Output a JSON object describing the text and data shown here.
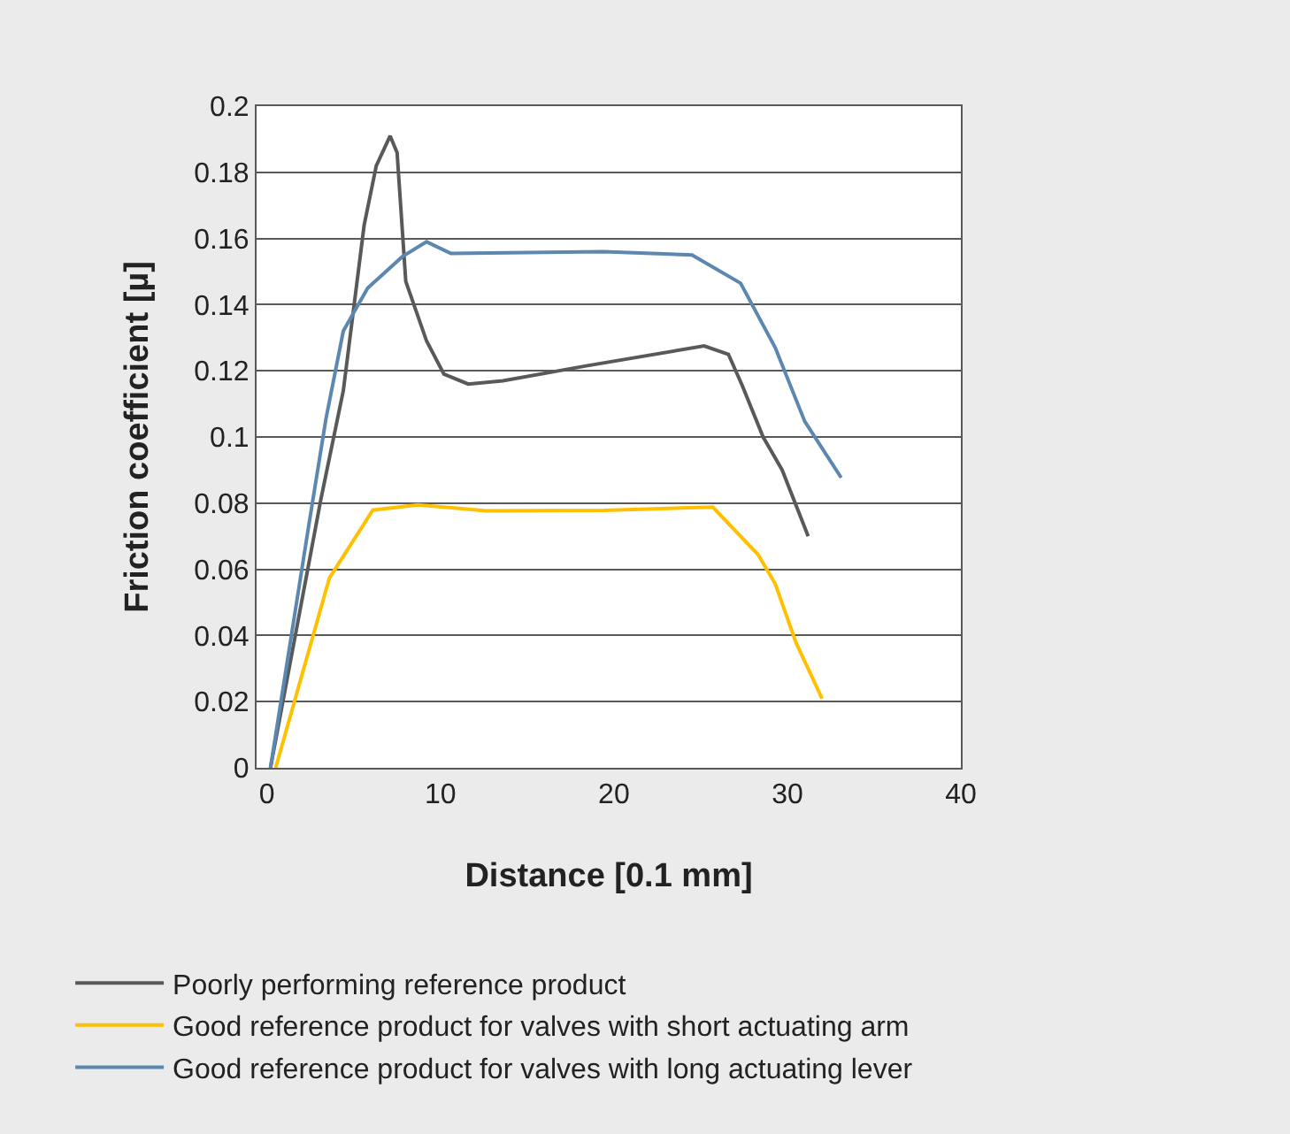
{
  "chart_data": {
    "type": "line",
    "xlabel": "Distance [0.1 mm]",
    "ylabel": "Friction coefficient [µ]",
    "xlim": [
      -0.6,
      40
    ],
    "xticks": [
      0,
      10,
      20,
      30,
      40
    ],
    "ylim": [
      0,
      0.2
    ],
    "yticks": [
      0,
      0.02,
      0.04,
      0.06,
      0.08,
      0.1,
      0.12,
      0.14,
      0.16,
      0.18,
      0.2
    ],
    "grid": "y",
    "legend": "bottom",
    "marker": "none",
    "line_style": "solid",
    "series": [
      {
        "name": "Poorly performing reference product",
        "color": "#595959",
        "x": [
          0.2,
          3.1,
          4.4,
          5.6,
          6.3,
          7.1,
          7.5,
          8.0,
          9.2,
          10.2,
          11.6,
          13.6,
          18.4,
          25.2,
          26.6,
          27.4,
          28.6,
          29.7,
          31.2
        ],
        "values": [
          0,
          0.081,
          0.114,
          0.164,
          0.182,
          0.191,
          0.186,
          0.147,
          0.129,
          0.119,
          0.116,
          0.117,
          0.1215,
          0.1275,
          0.125,
          0.1155,
          0.1,
          0.09,
          0.07
        ]
      },
      {
        "name": "Good reference product for valves with short actuating arm",
        "color": "#ffc000",
        "x": [
          0.5,
          3.6,
          6.1,
          8.7,
          12.6,
          19.4,
          25.7,
          28.3,
          29.3,
          30.5,
          32.0
        ],
        "values": [
          0,
          0.0574,
          0.0779,
          0.0795,
          0.0777,
          0.0778,
          0.0788,
          0.0645,
          0.0556,
          0.0378,
          0.0209
        ]
      },
      {
        "name": "Good reference product for valves with long actuating lever",
        "color": "#5b87b0",
        "x": [
          0.2,
          2.4,
          3.4,
          4.4,
          5.8,
          7.8,
          9.2,
          10.6,
          19.4,
          24.5,
          27.3,
          29.3,
          31.0,
          33.1
        ],
        "values": [
          0,
          0.073,
          0.1055,
          0.132,
          0.145,
          0.1545,
          0.159,
          0.1555,
          0.156,
          0.155,
          0.1465,
          0.127,
          0.1047,
          0.0877
        ]
      }
    ]
  }
}
